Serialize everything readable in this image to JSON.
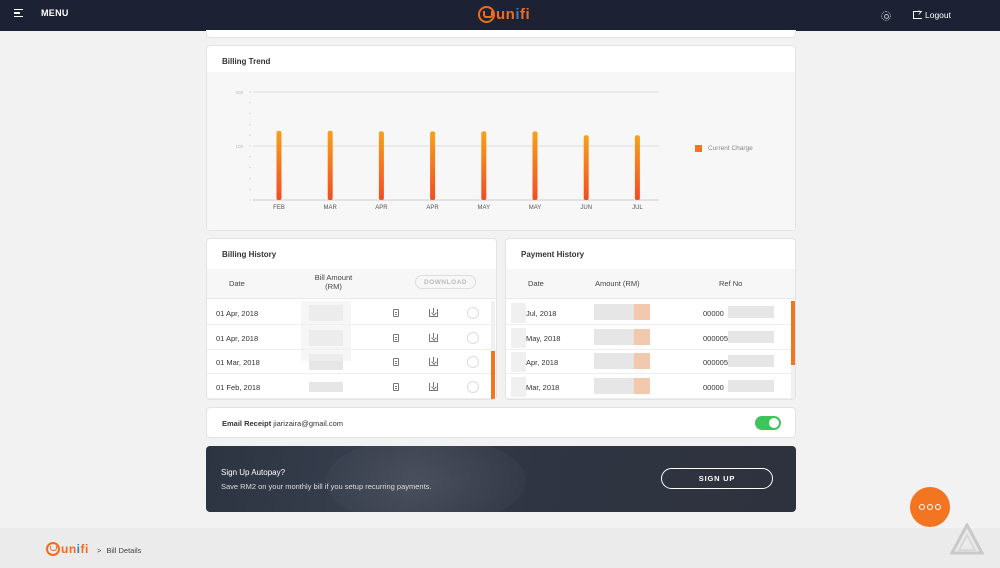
{
  "topbar": {
    "menu_label": "MENU",
    "logo_prefix": "un",
    "logo_accent": "i",
    "logo_suffix": "fi",
    "logout_label": "Logout"
  },
  "trend": {
    "title": "Billing Trend",
    "legend": "Current Charge"
  },
  "chart_data": {
    "type": "bar",
    "categories": [
      "FEB",
      "MAR",
      "APR",
      "APR",
      "MAY",
      "MAY",
      "JUN",
      "JUL"
    ],
    "series": [
      {
        "name": "Current Charge",
        "values": [
          128,
          128,
          127,
          127,
          127,
          127,
          120,
          120
        ]
      }
    ],
    "yticks": [
      "200",
      "100"
    ],
    "ylim": [
      0,
      200
    ],
    "grid": true,
    "legend_position": "right",
    "bar_color": "#f37421"
  },
  "billing": {
    "title": "Billing History",
    "col_date": "Date",
    "col_amount_l1": "Bill Amount",
    "col_amount_l2": "(RM)",
    "download_label": "DOWNLOAD",
    "rows": [
      {
        "date": "01 Apr, 2018"
      },
      {
        "date": "01 Apr, 2018"
      },
      {
        "date": "01 Mar, 2018"
      },
      {
        "date": "01 Feb, 2018"
      }
    ]
  },
  "payment": {
    "title": "Payment History",
    "col_date": "Date",
    "col_amount": "Amount (RM)",
    "col_ref": "Ref No",
    "rows": [
      {
        "date": "Jul, 2018",
        "ref": "00000"
      },
      {
        "date": "May, 2018",
        "ref": "000005"
      },
      {
        "date": "Apr, 2018",
        "ref": "000005"
      },
      {
        "date": "Mar, 2018",
        "ref": "00000"
      }
    ]
  },
  "email": {
    "label": "Email Receipt",
    "address": "jiarizaira@gmail.com",
    "enabled": true
  },
  "autopay": {
    "title": "Sign Up Autopay?",
    "subtitle": "Save RM2 on your monthly bill if you setup recurring payments.",
    "button": "SIGN UP"
  },
  "footer": {
    "separator": ">",
    "crumb": "Bill Details"
  },
  "colors": {
    "accent": "#f37421",
    "topbar": "#1c2233",
    "toggle_on": "#3ec45a"
  }
}
